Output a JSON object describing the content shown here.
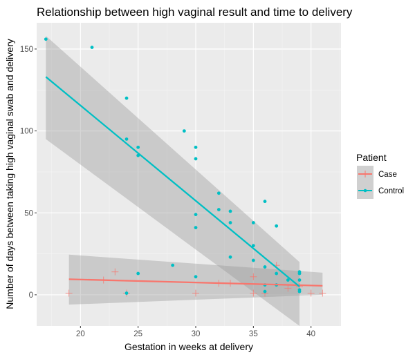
{
  "chart_data": {
    "type": "scatter",
    "title": "Relationship between high vaginal result and time to delivery",
    "xlabel": "Gestation in weeks at delivery",
    "ylabel": "Number of days between taking high vaginal swab and delivery",
    "xlim": [
      16.2,
      42.6
    ],
    "ylim": [
      -19,
      166
    ],
    "x_ticks": [
      20,
      25,
      30,
      35,
      40
    ],
    "y_ticks": [
      0,
      50,
      100,
      150
    ],
    "x_tick_labels": [
      "20",
      "25",
      "30",
      "35",
      "40"
    ],
    "y_tick_labels": [
      "0",
      "50",
      "100",
      "150"
    ],
    "grid": true,
    "legend": {
      "title": "Patient",
      "position": "right",
      "entries": [
        "Case",
        "Control"
      ]
    },
    "series": [
      {
        "name": "Case",
        "color": "#F8766D",
        "marker": "plus",
        "points": [
          [
            19,
            1
          ],
          [
            22,
            9
          ],
          [
            23,
            14
          ],
          [
            24,
            1
          ],
          [
            30,
            1
          ],
          [
            32,
            7
          ],
          [
            33,
            7
          ],
          [
            35,
            11
          ],
          [
            35,
            1
          ],
          [
            36,
            1
          ],
          [
            37,
            18
          ],
          [
            38,
            4
          ],
          [
            39,
            5
          ],
          [
            40,
            1
          ],
          [
            41,
            1
          ]
        ],
        "fit": {
          "x": [
            19,
            41
          ],
          "y": [
            9.5,
            5.5
          ],
          "ci_lower": [
            -6,
            0
          ],
          "ci_upper": [
            24.5,
            13.5
          ]
        }
      },
      {
        "name": "Control",
        "color": "#00BFC4",
        "marker": "circle",
        "points": [
          [
            17,
            156
          ],
          [
            21,
            151
          ],
          [
            24,
            120
          ],
          [
            24,
            95
          ],
          [
            25,
            90
          ],
          [
            25,
            85
          ],
          [
            24,
            1
          ],
          [
            25,
            13
          ],
          [
            28,
            18
          ],
          [
            29,
            100
          ],
          [
            30,
            90
          ],
          [
            30,
            83
          ],
          [
            30,
            49
          ],
          [
            30,
            41
          ],
          [
            30,
            11
          ],
          [
            32,
            62
          ],
          [
            32,
            52
          ],
          [
            33,
            51
          ],
          [
            33,
            44
          ],
          [
            33,
            23
          ],
          [
            35,
            44
          ],
          [
            35,
            30
          ],
          [
            35,
            21
          ],
          [
            36,
            57
          ],
          [
            36,
            17
          ],
          [
            36,
            6
          ],
          [
            36,
            2
          ],
          [
            37,
            42
          ],
          [
            37,
            13
          ],
          [
            37,
            6
          ],
          [
            38,
            9
          ],
          [
            39,
            14
          ],
          [
            39,
            13
          ],
          [
            39,
            9
          ],
          [
            39,
            3
          ],
          [
            39,
            2
          ]
        ],
        "fit": {
          "x": [
            17,
            39
          ],
          "y": [
            133,
            5
          ],
          "ci_lower": [
            95,
            -19
          ],
          "ci_upper": [
            158,
            20
          ]
        }
      }
    ]
  }
}
